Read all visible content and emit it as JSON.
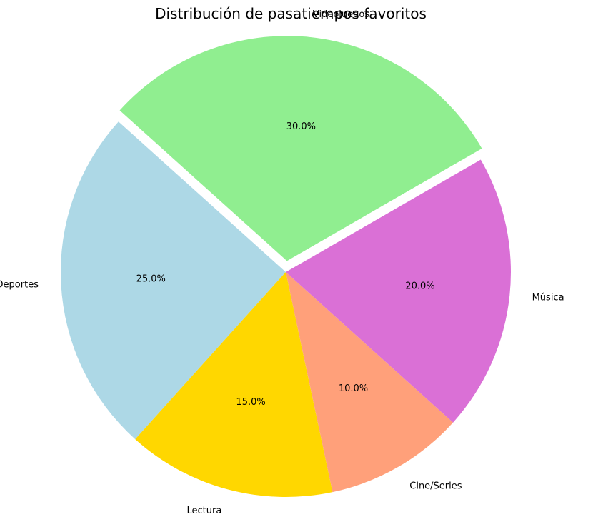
{
  "chart_data": {
    "type": "pie",
    "title": "Distribución de pasatiempos favoritos",
    "slices": [
      {
        "label": "Videojuegos",
        "value": 30,
        "pct_label": "30.0%",
        "color": "#90ee90",
        "exploded": true
      },
      {
        "label": "Deportes",
        "value": 25,
        "pct_label": "25.0%",
        "color": "#add8e6",
        "exploded": false
      },
      {
        "label": "Lectura",
        "value": 15,
        "pct_label": "15.0%",
        "color": "#ffd700",
        "exploded": false
      },
      {
        "label": "Cine/Series",
        "value": 10,
        "pct_label": "10.0%",
        "color": "#ffa07a",
        "exploded": false
      },
      {
        "label": "Música",
        "value": 20,
        "pct_label": "20.0%",
        "color": "#da70d6",
        "exploded": false
      }
    ],
    "start_angle_deg": 30,
    "direction": "counterclockwise",
    "legend": "none"
  }
}
